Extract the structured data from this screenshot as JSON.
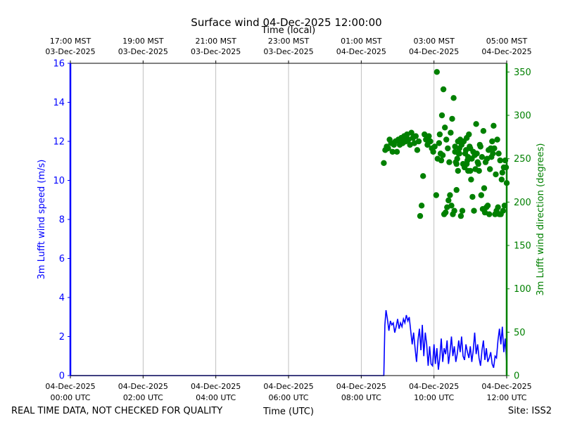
{
  "chart_data": {
    "type": "line+scatter",
    "title": "Surface wind 04-Dec-2025 12:00:00",
    "top_xlabel": "Time (local)",
    "xlabel": "Time (UTC)",
    "ylabel_left": "3m Lufft wind speed (m/s)",
    "ylabel_right": "3m Lufft wind direction (degrees)",
    "footer_left": "REAL TIME DATA, NOT CHECKED FOR QUALITY",
    "footer_right": "Site: ISS2",
    "xlim_hours": [
      0,
      12
    ],
    "ylim_left": [
      0,
      16
    ],
    "ylim_right": [
      0,
      360
    ],
    "grid": "vertical",
    "colors": {
      "speed": "#0000ff",
      "direction": "#008000",
      "grid": "#b0b0b0",
      "axis": "#000000"
    },
    "bottom_ticks": [
      {
        "hour": 0,
        "date": "04-Dec-2025",
        "time": "00:00 UTC"
      },
      {
        "hour": 2,
        "date": "04-Dec-2025",
        "time": "02:00 UTC"
      },
      {
        "hour": 4,
        "date": "04-Dec-2025",
        "time": "04:00 UTC"
      },
      {
        "hour": 6,
        "date": "04-Dec-2025",
        "time": "06:00 UTC"
      },
      {
        "hour": 8,
        "date": "04-Dec-2025",
        "time": "08:00 UTC"
      },
      {
        "hour": 10,
        "date": "04-Dec-2025",
        "time": "10:00 UTC"
      },
      {
        "hour": 12,
        "date": "04-Dec-2025",
        "time": "12:00 UTC"
      }
    ],
    "top_ticks": [
      {
        "hour": 0,
        "time": "17:00 MST",
        "date": "03-Dec-2025"
      },
      {
        "hour": 2,
        "time": "19:00 MST",
        "date": "03-Dec-2025"
      },
      {
        "hour": 4,
        "time": "21:00 MST",
        "date": "03-Dec-2025"
      },
      {
        "hour": 6,
        "time": "23:00 MST",
        "date": "03-Dec-2025"
      },
      {
        "hour": 8,
        "time": "01:00 MST",
        "date": "04-Dec-2025"
      },
      {
        "hour": 10,
        "time": "03:00 MST",
        "date": "04-Dec-2025"
      },
      {
        "hour": 12,
        "time": "05:00 MST",
        "date": "04-Dec-2025"
      }
    ],
    "left_ticks": [
      0,
      2,
      4,
      6,
      8,
      10,
      12,
      14,
      16
    ],
    "right_ticks": [
      0,
      50,
      100,
      150,
      200,
      250,
      300,
      350
    ],
    "speed_series": [
      [
        0,
        0
      ],
      [
        8.62,
        0
      ],
      [
        8.65,
        2.6
      ],
      [
        8.68,
        3.35
      ],
      [
        8.72,
        2.9
      ],
      [
        8.76,
        2.3
      ],
      [
        8.8,
        2.8
      ],
      [
        8.84,
        2.6
      ],
      [
        8.88,
        2.7
      ],
      [
        8.92,
        2.2
      ],
      [
        8.96,
        2.5
      ],
      [
        9.0,
        2.9
      ],
      [
        9.04,
        2.4
      ],
      [
        9.08,
        2.7
      ],
      [
        9.12,
        2.5
      ],
      [
        9.16,
        2.9
      ],
      [
        9.2,
        2.7
      ],
      [
        9.24,
        3.1
      ],
      [
        9.28,
        2.8
      ],
      [
        9.32,
        3.0
      ],
      [
        9.36,
        2.3
      ],
      [
        9.4,
        1.6
      ],
      [
        9.44,
        2.2
      ],
      [
        9.48,
        1.4
      ],
      [
        9.52,
        0.7
      ],
      [
        9.56,
        1.8
      ],
      [
        9.6,
        2.4
      ],
      [
        9.64,
        1.3
      ],
      [
        9.68,
        2.6
      ],
      [
        9.72,
        1.0
      ],
      [
        9.76,
        2.2
      ],
      [
        9.8,
        1.6
      ],
      [
        9.84,
        0.5
      ],
      [
        9.88,
        1.5
      ],
      [
        9.92,
        0.6
      ],
      [
        9.96,
        0.5
      ],
      [
        10.0,
        1.6
      ],
      [
        10.04,
        0.6
      ],
      [
        10.08,
        1.4
      ],
      [
        10.12,
        0.3
      ],
      [
        10.16,
        0.9
      ],
      [
        10.2,
        1.9
      ],
      [
        10.24,
        0.7
      ],
      [
        10.28,
        1.4
      ],
      [
        10.32,
        1.1
      ],
      [
        10.36,
        1.8
      ],
      [
        10.4,
        0.6
      ],
      [
        10.44,
        1.2
      ],
      [
        10.48,
        2.0
      ],
      [
        10.52,
        1.0
      ],
      [
        10.56,
        1.5
      ],
      [
        10.6,
        0.7
      ],
      [
        10.64,
        1.1
      ],
      [
        10.68,
        1.8
      ],
      [
        10.72,
        1.2
      ],
      [
        10.76,
        2.0
      ],
      [
        10.8,
        1.0
      ],
      [
        10.84,
        0.8
      ],
      [
        10.88,
        1.6
      ],
      [
        10.92,
        1.2
      ],
      [
        10.96,
        0.9
      ],
      [
        11.0,
        1.5
      ],
      [
        11.04,
        0.7
      ],
      [
        11.08,
        1.3
      ],
      [
        11.12,
        2.2
      ],
      [
        11.16,
        1.1
      ],
      [
        11.2,
        1.6
      ],
      [
        11.24,
        0.9
      ],
      [
        11.28,
        0.5
      ],
      [
        11.32,
        1.3
      ],
      [
        11.36,
        1.8
      ],
      [
        11.4,
        0.8
      ],
      [
        11.44,
        1.4
      ],
      [
        11.48,
        0.7
      ],
      [
        11.52,
        0.9
      ],
      [
        11.56,
        1.2
      ],
      [
        11.6,
        0.6
      ],
      [
        11.64,
        0.4
      ],
      [
        11.68,
        1.0
      ],
      [
        11.72,
        0.9
      ],
      [
        11.76,
        1.8
      ],
      [
        11.8,
        2.4
      ],
      [
        11.84,
        1.6
      ],
      [
        11.88,
        2.5
      ],
      [
        11.92,
        1.2
      ],
      [
        11.96,
        1.9
      ],
      [
        12.0,
        0.6
      ]
    ],
    "direction_points": [
      [
        8.62,
        245
      ],
      [
        8.66,
        260
      ],
      [
        8.7,
        264
      ],
      [
        8.74,
        262
      ],
      [
        8.78,
        272
      ],
      [
        8.82,
        268
      ],
      [
        8.86,
        258
      ],
      [
        8.9,
        266
      ],
      [
        8.94,
        270
      ],
      [
        8.98,
        258
      ],
      [
        9.02,
        272
      ],
      [
        9.06,
        266
      ],
      [
        9.1,
        274
      ],
      [
        9.14,
        268
      ],
      [
        9.18,
        276
      ],
      [
        9.22,
        270
      ],
      [
        9.26,
        278
      ],
      [
        9.3,
        272
      ],
      [
        9.34,
        266
      ],
      [
        9.38,
        280
      ],
      [
        9.42,
        274
      ],
      [
        9.46,
        268
      ],
      [
        9.5,
        276
      ],
      [
        9.54,
        260
      ],
      [
        9.58,
        270
      ],
      [
        9.62,
        184
      ],
      [
        9.66,
        196
      ],
      [
        9.7,
        230
      ],
      [
        9.74,
        278
      ],
      [
        9.78,
        272
      ],
      [
        9.82,
        266
      ],
      [
        9.86,
        276
      ],
      [
        9.9,
        270
      ],
      [
        9.94,
        262
      ],
      [
        9.98,
        258
      ],
      [
        10.02,
        264
      ],
      [
        10.06,
        208
      ],
      [
        10.1,
        250
      ],
      [
        10.14,
        268
      ],
      [
        10.18,
        256
      ],
      [
        10.22,
        300
      ],
      [
        10.26,
        330
      ],
      [
        10.3,
        286
      ],
      [
        10.34,
        272
      ],
      [
        10.38,
        262
      ],
      [
        10.42,
        246
      ],
      [
        10.46,
        280
      ],
      [
        10.5,
        296
      ],
      [
        10.54,
        320
      ],
      [
        10.58,
        258
      ],
      [
        10.62,
        214
      ],
      [
        10.66,
        236
      ],
      [
        10.7,
        262
      ],
      [
        10.74,
        184
      ],
      [
        10.78,
        190
      ],
      [
        10.82,
        270
      ],
      [
        10.86,
        256
      ],
      [
        10.9,
        274
      ],
      [
        10.94,
        252
      ],
      [
        10.98,
        264
      ],
      [
        11.02,
        226
      ],
      [
        11.06,
        206
      ],
      [
        11.1,
        190
      ],
      [
        11.14,
        238
      ],
      [
        11.18,
        256
      ],
      [
        11.22,
        244
      ],
      [
        11.26,
        266
      ],
      [
        11.3,
        208
      ],
      [
        11.34,
        192
      ],
      [
        11.38,
        216
      ],
      [
        11.42,
        246
      ],
      [
        11.46,
        250
      ],
      [
        11.5,
        260
      ],
      [
        11.54,
        238
      ],
      [
        11.58,
        252
      ],
      [
        11.62,
        256
      ],
      [
        11.66,
        262
      ],
      [
        11.7,
        232
      ],
      [
        11.74,
        272
      ],
      [
        11.78,
        256
      ],
      [
        11.82,
        248
      ],
      [
        11.86,
        226
      ],
      [
        11.9,
        190
      ],
      [
        11.94,
        196
      ],
      [
        11.98,
        240
      ],
      [
        10.28,
        186
      ],
      [
        10.32,
        188
      ],
      [
        10.36,
        194
      ],
      [
        10.4,
        202
      ],
      [
        10.44,
        208
      ],
      [
        10.48,
        196
      ],
      [
        10.52,
        186
      ],
      [
        10.56,
        190
      ],
      [
        10.6,
        246
      ],
      [
        10.64,
        250
      ],
      [
        10.68,
        256
      ],
      [
        10.72,
        272
      ],
      [
        10.76,
        266
      ],
      [
        10.8,
        244
      ],
      [
        10.84,
        240
      ],
      [
        10.88,
        260
      ],
      [
        10.92,
        248
      ],
      [
        10.96,
        278
      ],
      [
        11.0,
        262
      ],
      [
        11.04,
        250
      ],
      [
        11.08,
        258
      ],
      [
        11.12,
        254
      ],
      [
        11.16,
        290
      ],
      [
        11.2,
        246
      ],
      [
        11.24,
        236
      ],
      [
        11.28,
        264
      ],
      [
        11.32,
        252
      ],
      [
        11.36,
        282
      ],
      [
        11.4,
        188
      ],
      [
        11.44,
        194
      ],
      [
        11.48,
        196
      ],
      [
        11.52,
        186
      ],
      [
        11.56,
        262
      ],
      [
        11.6,
        270
      ],
      [
        11.64,
        288
      ],
      [
        11.68,
        186
      ],
      [
        11.72,
        190
      ],
      [
        11.76,
        194
      ],
      [
        11.8,
        186
      ],
      [
        11.84,
        186
      ],
      [
        11.88,
        234
      ],
      [
        11.92,
        240
      ],
      [
        11.96,
        248
      ],
      [
        12.0,
        222
      ],
      [
        10.08,
        350
      ],
      [
        10.16,
        278
      ],
      [
        10.2,
        248
      ],
      [
        10.24,
        254
      ],
      [
        10.58,
        264
      ],
      [
        10.62,
        244
      ],
      [
        10.66,
        270
      ],
      [
        10.7,
        256
      ],
      [
        10.9,
        244
      ],
      [
        10.94,
        236
      ],
      [
        11.0,
        236
      ]
    ]
  }
}
